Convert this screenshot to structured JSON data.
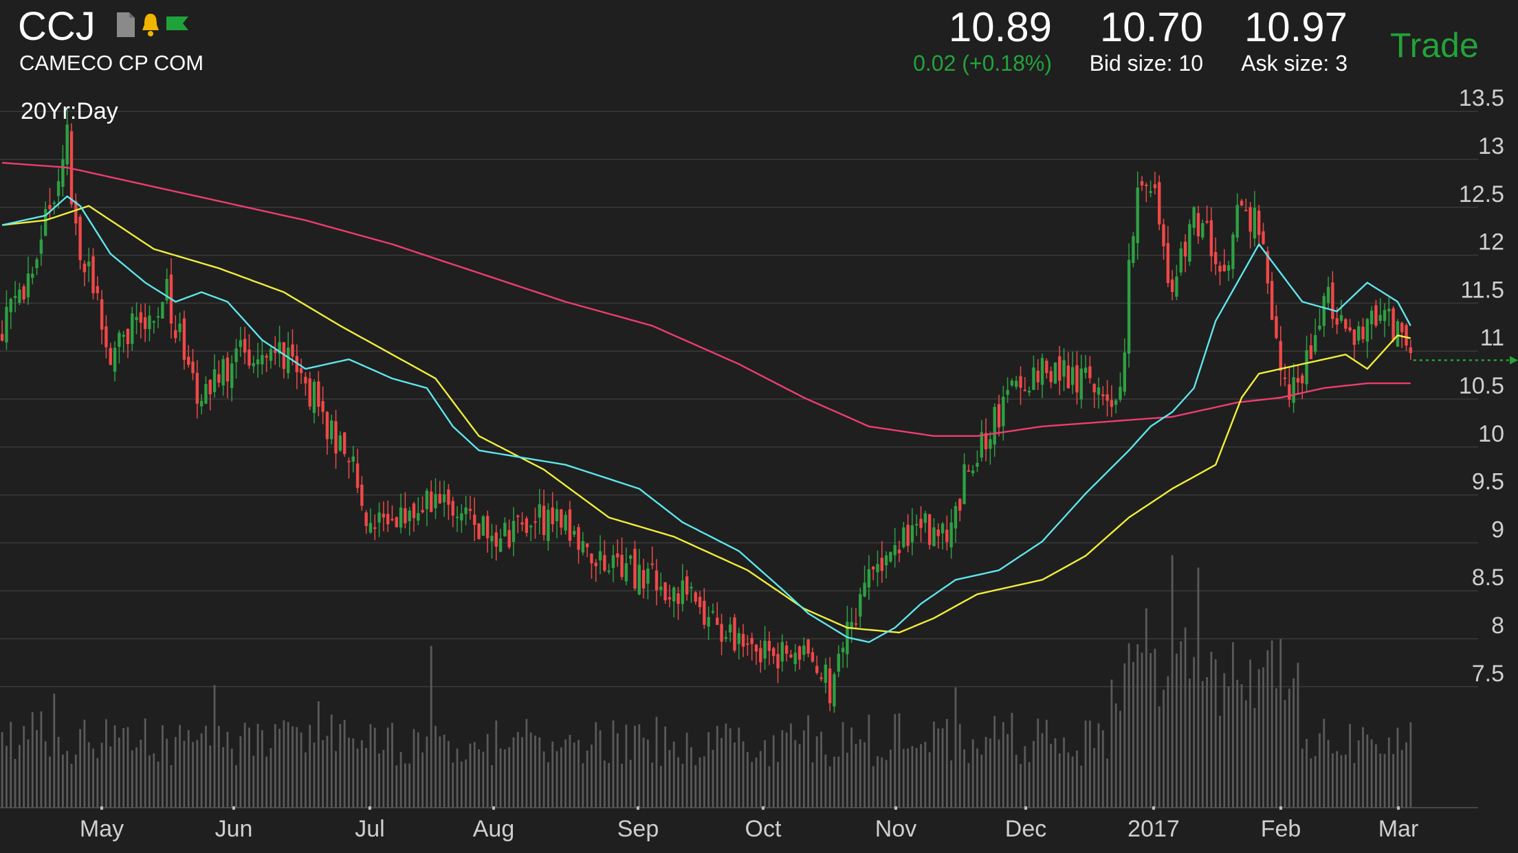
{
  "header": {
    "symbol": "CCJ",
    "company": "CAMECO CP COM",
    "period": "20Yr:Day",
    "icons": [
      "document-icon",
      "bell-icon",
      "flag-icon"
    ],
    "last": "10.89",
    "change": "0.02 (+0.18%)",
    "bid": "10.70",
    "bid_size_label": "Bid size: 10",
    "ask": "10.97",
    "ask_size_label": "Ask size: 3",
    "trade_label": "Trade"
  },
  "colors": {
    "background": "#1f1f1f",
    "grid": "#3a3a3a",
    "up": "#2ea043",
    "down": "#f04848",
    "ma_short": "#5fe6ee",
    "ma_mid": "#f2ef3a",
    "ma_long": "#ef3d6e",
    "volume": "#5a5a5a",
    "last_price": "#23a33a",
    "text": "#ffffff",
    "axis_text": "#cfcfcf"
  },
  "chart_data": {
    "type": "candlestick",
    "x_labels": [
      "May",
      "Jun",
      "Jul",
      "Aug",
      "Sep",
      "Oct",
      "Nov",
      "Dec",
      "2017",
      "Feb",
      "Mar"
    ],
    "y_ticks": [
      "13.5",
      "13",
      "12.5",
      "12",
      "11.5",
      "11",
      "10.5",
      "10",
      "9.5",
      "9",
      "8.5",
      "8",
      "7.5"
    ],
    "ylim": [
      7.0,
      13.7
    ],
    "last_price": 10.89,
    "close_path": [
      [
        0,
        11.2
      ],
      [
        7,
        11.8
      ],
      [
        15,
        13.2
      ],
      [
        16,
        12.4
      ],
      [
        25,
        11.0
      ],
      [
        38,
        11.6
      ],
      [
        45,
        10.5
      ],
      [
        56,
        11.0
      ],
      [
        67,
        10.9
      ],
      [
        72,
        10.5
      ],
      [
        80,
        9.8
      ],
      [
        82,
        9.7
      ],
      [
        83,
        9.25
      ],
      [
        96,
        9.35
      ],
      [
        104,
        9.4
      ],
      [
        114,
        9.05
      ],
      [
        126,
        9.25
      ],
      [
        142,
        8.75
      ],
      [
        157,
        8.45
      ],
      [
        168,
        8.05
      ],
      [
        178,
        7.85
      ],
      [
        188,
        7.8
      ],
      [
        191,
        7.45
      ],
      [
        195,
        8.0
      ],
      [
        200,
        8.7
      ],
      [
        212,
        9.2
      ],
      [
        218,
        9.0
      ],
      [
        222,
        9.65
      ],
      [
        227,
        10.1
      ],
      [
        233,
        10.55
      ],
      [
        242,
        10.8
      ],
      [
        252,
        10.6
      ],
      [
        255,
        10.4
      ],
      [
        259,
        10.8
      ],
      [
        260,
        11.8
      ],
      [
        262,
        12.6
      ],
      [
        265,
        12.8
      ],
      [
        270,
        11.6
      ],
      [
        275,
        12.4
      ],
      [
        280,
        12.0
      ],
      [
        283,
        11.8
      ],
      [
        285,
        12.5
      ],
      [
        290,
        12.3
      ],
      [
        296,
        10.6
      ],
      [
        300,
        10.7
      ],
      [
        305,
        11.6
      ],
      [
        312,
        11.2
      ],
      [
        318,
        11.3
      ],
      [
        324,
        11.2
      ],
      [
        325,
        10.89
      ]
    ],
    "ma_short_path": [
      [
        0,
        12.3
      ],
      [
        10,
        12.4
      ],
      [
        15,
        12.6
      ],
      [
        18,
        12.5
      ],
      [
        25,
        12.0
      ],
      [
        33,
        11.7
      ],
      [
        40,
        11.5
      ],
      [
        46,
        11.6
      ],
      [
        52,
        11.5
      ],
      [
        60,
        11.1
      ],
      [
        70,
        10.8
      ],
      [
        80,
        10.9
      ],
      [
        90,
        10.7
      ],
      [
        98,
        10.6
      ],
      [
        104,
        10.2
      ],
      [
        110,
        9.95
      ],
      [
        130,
        9.8
      ],
      [
        147,
        9.55
      ],
      [
        157,
        9.2
      ],
      [
        170,
        8.9
      ],
      [
        180,
        8.5
      ],
      [
        186,
        8.25
      ],
      [
        195,
        8.0
      ],
      [
        200,
        7.95
      ],
      [
        206,
        8.1
      ],
      [
        212,
        8.35
      ],
      [
        220,
        8.6
      ],
      [
        230,
        8.7
      ],
      [
        240,
        9.0
      ],
      [
        250,
        9.5
      ],
      [
        260,
        9.95
      ],
      [
        265,
        10.2
      ],
      [
        270,
        10.35
      ],
      [
        275,
        10.6
      ],
      [
        280,
        11.3
      ],
      [
        285,
        11.7
      ],
      [
        290,
        12.1
      ],
      [
        295,
        11.8
      ],
      [
        300,
        11.5
      ],
      [
        308,
        11.4
      ],
      [
        315,
        11.7
      ],
      [
        322,
        11.5
      ],
      [
        325,
        11.25
      ]
    ],
    "ma_mid_path": [
      [
        0,
        12.3
      ],
      [
        10,
        12.35
      ],
      [
        20,
        12.5
      ],
      [
        35,
        12.05
      ],
      [
        50,
        11.85
      ],
      [
        65,
        11.6
      ],
      [
        78,
        11.25
      ],
      [
        86,
        11.05
      ],
      [
        100,
        10.7
      ],
      [
        110,
        10.1
      ],
      [
        125,
        9.75
      ],
      [
        140,
        9.25
      ],
      [
        155,
        9.05
      ],
      [
        172,
        8.7
      ],
      [
        185,
        8.3
      ],
      [
        195,
        8.1
      ],
      [
        207,
        8.05
      ],
      [
        215,
        8.2
      ],
      [
        225,
        8.45
      ],
      [
        240,
        8.6
      ],
      [
        250,
        8.85
      ],
      [
        260,
        9.25
      ],
      [
        270,
        9.55
      ],
      [
        280,
        9.8
      ],
      [
        286,
        10.5
      ],
      [
        290,
        10.75
      ],
      [
        300,
        10.85
      ],
      [
        310,
        10.95
      ],
      [
        315,
        10.8
      ],
      [
        322,
        11.15
      ],
      [
        325,
        11.12
      ]
    ],
    "ma_long_path": [
      [
        0,
        12.95
      ],
      [
        15,
        12.9
      ],
      [
        30,
        12.75
      ],
      [
        50,
        12.55
      ],
      [
        70,
        12.35
      ],
      [
        90,
        12.1
      ],
      [
        110,
        11.8
      ],
      [
        130,
        11.5
      ],
      [
        150,
        11.25
      ],
      [
        170,
        10.85
      ],
      [
        185,
        10.5
      ],
      [
        200,
        10.2
      ],
      [
        215,
        10.1
      ],
      [
        225,
        10.1
      ],
      [
        240,
        10.2
      ],
      [
        255,
        10.25
      ],
      [
        270,
        10.3
      ],
      [
        285,
        10.45
      ],
      [
        295,
        10.5
      ],
      [
        305,
        10.6
      ],
      [
        315,
        10.65
      ],
      [
        325,
        10.65
      ]
    ]
  }
}
